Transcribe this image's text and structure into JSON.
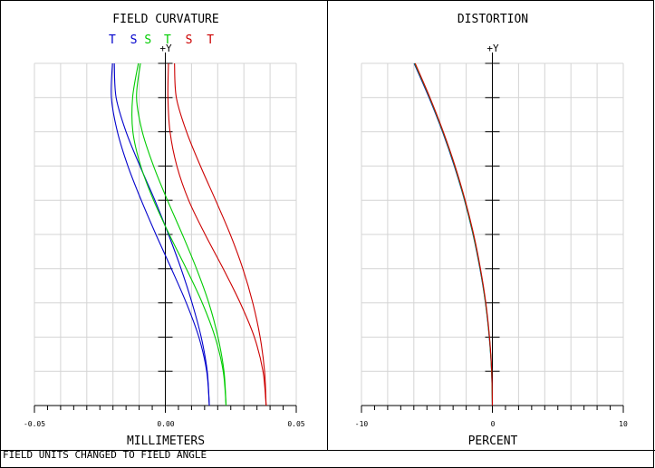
{
  "chart_data": [
    {
      "type": "line",
      "title": "FIELD CURVATURE",
      "axis_marker": "+Y",
      "xlabel": "MILLIMETERS",
      "x_ticks": [
        "-0.05",
        "0.00",
        "0.05"
      ],
      "xlim": [
        -0.05,
        0.05
      ],
      "ylim": [
        0,
        1
      ],
      "grid": true,
      "legend": [
        {
          "text": "T",
          "color": "#0000cc"
        },
        {
          "text": "S",
          "color": "#0000cc"
        },
        {
          "text": "S",
          "color": "#00cc00"
        },
        {
          "text": "T",
          "color": "#00cc00"
        },
        {
          "text": "S",
          "color": "#cc0000"
        },
        {
          "text": "T",
          "color": "#cc0000"
        }
      ],
      "series": [
        {
          "color": "#0000cc",
          "y": [
            0,
            0.1,
            0.2,
            0.3,
            0.4,
            0.5,
            0.6,
            0.7,
            0.8,
            0.9,
            1.0
          ],
          "x": [
            0.0168,
            0.0158,
            0.0128,
            0.008,
            0.0023,
            -0.0036,
            -0.0092,
            -0.0143,
            -0.0183,
            -0.0206,
            -0.0202
          ]
        },
        {
          "color": "#0000cc",
          "y": [
            0,
            0.1,
            0.2,
            0.3,
            0.4,
            0.5,
            0.6,
            0.7,
            0.8,
            0.9,
            1.0
          ],
          "x": [
            0.0168,
            0.016,
            0.0137,
            0.0102,
            0.006,
            0.0012,
            -0.004,
            -0.0097,
            -0.015,
            -0.0188,
            -0.0195
          ]
        },
        {
          "color": "#00cc00",
          "y": [
            0,
            0.1,
            0.2,
            0.3,
            0.4,
            0.5,
            0.6,
            0.7,
            0.8,
            0.9,
            1.0
          ],
          "x": [
            0.0232,
            0.0221,
            0.019,
            0.0141,
            0.008,
            0.0015,
            -0.0045,
            -0.0094,
            -0.0124,
            -0.0125,
            -0.0103
          ]
        },
        {
          "color": "#00cc00",
          "y": [
            0,
            0.1,
            0.2,
            0.3,
            0.4,
            0.5,
            0.6,
            0.7,
            0.8,
            0.9,
            1.0
          ],
          "x": [
            0.0232,
            0.0224,
            0.0201,
            0.0166,
            0.0119,
            0.0065,
            0.0008,
            -0.0045,
            -0.0088,
            -0.011,
            -0.0095
          ]
        },
        {
          "color": "#cc0000",
          "y": [
            0,
            0.1,
            0.2,
            0.3,
            0.4,
            0.5,
            0.6,
            0.7,
            0.8,
            0.9,
            1.0
          ],
          "x": [
            0.0385,
            0.0373,
            0.034,
            0.0286,
            0.0221,
            0.0152,
            0.0089,
            0.0044,
            0.0018,
            0.001,
            0.0012
          ]
        },
        {
          "color": "#cc0000",
          "y": [
            0,
            0.1,
            0.2,
            0.3,
            0.4,
            0.5,
            0.6,
            0.7,
            0.8,
            0.9,
            1.0
          ],
          "x": [
            0.0385,
            0.0379,
            0.0362,
            0.0334,
            0.0296,
            0.0248,
            0.0192,
            0.0134,
            0.0081,
            0.0042,
            0.0035
          ]
        }
      ]
    },
    {
      "type": "line",
      "title": "DISTORTION",
      "axis_marker": "+Y",
      "xlabel": "PERCENT",
      "x_ticks": [
        "-10",
        "0",
        "10"
      ],
      "xlim": [
        -10,
        10
      ],
      "ylim": [
        0,
        1
      ],
      "grid": true,
      "series": [
        {
          "color": "#0000cc",
          "y": [
            0,
            0.1,
            0.2,
            0.3,
            0.4,
            0.5,
            0.6,
            0.7,
            0.8,
            0.9,
            1.0
          ],
          "x": [
            0.0,
            -0.06,
            -0.24,
            -0.53,
            -0.95,
            -1.48,
            -2.13,
            -2.91,
            -3.81,
            -4.84,
            -5.98
          ]
        },
        {
          "color": "#00cc00",
          "y": [
            0,
            0.1,
            0.2,
            0.3,
            0.4,
            0.5,
            0.6,
            0.7,
            0.8,
            0.9,
            1.0
          ],
          "x": [
            0.0,
            -0.06,
            -0.23,
            -0.52,
            -0.93,
            -1.46,
            -2.11,
            -2.88,
            -3.78,
            -4.8,
            -5.94
          ]
        },
        {
          "color": "#cc0000",
          "y": [
            0,
            0.1,
            0.2,
            0.3,
            0.4,
            0.5,
            0.6,
            0.7,
            0.8,
            0.9,
            1.0
          ],
          "x": [
            0.0,
            -0.05,
            -0.22,
            -0.5,
            -0.91,
            -1.43,
            -2.08,
            -2.85,
            -3.75,
            -4.77,
            -5.9
          ]
        }
      ]
    }
  ],
  "footer_note": "FIELD UNITS CHANGED TO FIELD ANGLE"
}
